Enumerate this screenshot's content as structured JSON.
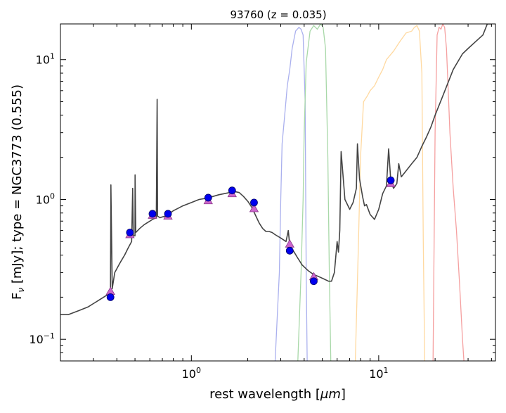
{
  "chart_data": {
    "type": "line",
    "title": "93760 (z = 0.035)",
    "xlabel_prefix": "rest wavelength [",
    "xlabel_unit": "μm",
    "xlabel_suffix": "]",
    "ylabel_prefix": "F",
    "ylabel_sub": "ν",
    "ylabel_suffix": " [mJy];  type = NGC3773 (0.555)",
    "x_scale": "log",
    "y_scale": "log",
    "xlim": [
      0.2,
      42
    ],
    "ylim": [
      0.07,
      18
    ],
    "x_ticks": [
      {
        "value": 1,
        "base": "10",
        "exp": "0"
      },
      {
        "value": 10,
        "base": "10",
        "exp": "1"
      }
    ],
    "y_ticks": [
      {
        "value": 0.1,
        "base": "10",
        "exp": "−1"
      },
      {
        "value": 1,
        "base": "10",
        "exp": "0"
      },
      {
        "value": 10,
        "base": "10",
        "exp": "1"
      }
    ],
    "grid": false,
    "colors": {
      "template": "#444444",
      "photometry": "#0000ee",
      "model": "#cc66cc",
      "filter_blue": "#aab0ee",
      "filter_green": "#a8d8a8",
      "filter_orange": "#ffd9a0",
      "filter_red": "#f5a0a0"
    },
    "series": [
      {
        "kind": "template",
        "x": [
          0.2,
          0.22,
          0.25,
          0.28,
          0.3,
          0.32,
          0.34,
          0.36,
          0.37,
          0.372,
          0.378,
          0.39,
          0.41,
          0.42,
          0.44,
          0.46,
          0.48,
          0.486,
          0.49,
          0.5,
          0.5007,
          0.505,
          0.53,
          0.56,
          0.6,
          0.62,
          0.65,
          0.6563,
          0.66,
          0.68,
          0.7,
          0.73,
          0.76,
          0.8,
          0.9,
          1.0,
          1.1,
          1.2,
          1.3,
          1.4,
          1.5,
          1.6,
          1.7,
          1.8,
          1.9,
          2.0,
          2.1,
          2.2,
          2.3,
          2.4,
          2.5,
          2.6,
          2.7,
          2.8,
          3.0,
          3.2,
          3.29,
          3.35,
          3.5,
          3.7,
          3.9,
          4.2,
          4.5,
          4.8,
          5.1,
          5.4,
          5.6,
          5.8,
          6.0,
          6.1,
          6.2,
          6.3,
          6.6,
          7.0,
          7.3,
          7.6,
          7.7,
          7.9,
          8.2,
          8.4,
          8.6,
          9.0,
          9.5,
          10.0,
          10.5,
          11.0,
          11.3,
          11.6,
          12.0,
          12.5,
          12.8,
          13.2,
          14.0,
          15.0,
          16.0,
          17.0,
          18.0,
          19.0,
          20.0,
          22.0,
          25.0,
          28.0,
          30.0,
          33.0,
          36.0,
          38.0,
          40.0
        ],
        "y": [
          0.15,
          0.15,
          0.16,
          0.17,
          0.18,
          0.19,
          0.2,
          0.21,
          0.21,
          1.27,
          0.23,
          0.3,
          0.34,
          0.36,
          0.4,
          0.45,
          0.5,
          1.2,
          0.55,
          0.55,
          1.5,
          0.58,
          0.62,
          0.66,
          0.7,
          0.72,
          0.74,
          5.2,
          0.76,
          0.74,
          0.75,
          0.76,
          0.79,
          0.83,
          0.9,
          0.95,
          1.0,
          1.02,
          1.05,
          1.08,
          1.1,
          1.12,
          1.14,
          1.12,
          1.05,
          0.97,
          0.88,
          0.77,
          0.68,
          0.62,
          0.59,
          0.59,
          0.58,
          0.56,
          0.53,
          0.5,
          0.6,
          0.47,
          0.43,
          0.38,
          0.34,
          0.31,
          0.29,
          0.28,
          0.27,
          0.26,
          0.26,
          0.3,
          0.5,
          0.42,
          0.6,
          2.2,
          1.0,
          0.85,
          0.95,
          1.2,
          2.5,
          1.4,
          1.05,
          0.9,
          0.92,
          0.78,
          0.72,
          0.85,
          1.1,
          1.25,
          2.3,
          1.35,
          1.2,
          1.3,
          1.8,
          1.45,
          1.6,
          1.8,
          2.0,
          2.4,
          2.8,
          3.3,
          4.0,
          5.5,
          8.5,
          11.0,
          12.0,
          13.5,
          15.0,
          18.0,
          18.0
        ]
      },
      {
        "kind": "filter",
        "color_key": "filter_blue",
        "x": [
          2.8,
          2.95,
          3.0,
          3.05,
          3.15,
          3.25,
          3.35,
          3.45,
          3.6,
          3.75,
          3.85,
          3.95,
          4.05,
          4.1,
          4.15
        ],
        "y": [
          0.07,
          0.3,
          1.0,
          2.5,
          4.0,
          6.5,
          8.5,
          12.0,
          16.0,
          17.0,
          16.5,
          15.0,
          5.0,
          0.3,
          0.07
        ]
      },
      {
        "kind": "filter",
        "color_key": "filter_green",
        "x": [
          3.7,
          3.85,
          3.95,
          4.0,
          4.1,
          4.3,
          4.5,
          4.7,
          4.9,
          5.05,
          5.2,
          5.35,
          5.45,
          5.55
        ],
        "y": [
          0.07,
          0.3,
          1.0,
          3.0,
          9.5,
          16.0,
          17.5,
          16.5,
          18.0,
          17.0,
          12.0,
          2.0,
          0.3,
          0.07
        ]
      },
      {
        "kind": "filter",
        "color_key": "filter_orange",
        "x": [
          7.5,
          7.8,
          8.0,
          8.3,
          8.7,
          9.0,
          9.5,
          10.0,
          10.5,
          11.0,
          12.0,
          13.0,
          14.0,
          15.0,
          15.5,
          16.0,
          16.5,
          17.0,
          17.3,
          17.6
        ],
        "y": [
          0.07,
          0.5,
          2.0,
          5.0,
          5.5,
          6.0,
          6.5,
          7.5,
          8.5,
          10.0,
          11.5,
          13.5,
          15.5,
          16.0,
          17.0,
          17.5,
          16.0,
          8.0,
          0.5,
          0.07
        ]
      },
      {
        "kind": "filter",
        "color_key": "filter_red",
        "x": [
          19.5,
          20.0,
          20.5,
          21.0,
          21.5,
          22.0,
          22.5,
          23.0,
          23.5,
          24.0,
          25.0,
          26.0,
          27.0,
          28.0,
          28.5
        ],
        "y": [
          0.07,
          3.0,
          15.0,
          17.0,
          16.5,
          18.0,
          17.0,
          12.0,
          6.0,
          3.0,
          1.2,
          0.6,
          0.25,
          0.1,
          0.07
        ]
      },
      {
        "kind": "model_points",
        "x": [
          0.37,
          0.47,
          0.62,
          0.75,
          1.23,
          1.65,
          2.16,
          3.35,
          4.5,
          11.6
        ],
        "y": [
          0.22,
          0.56,
          0.77,
          0.76,
          0.98,
          1.1,
          0.86,
          0.48,
          0.28,
          1.3
        ]
      },
      {
        "kind": "observed_points",
        "x": [
          0.37,
          0.47,
          0.62,
          0.75,
          1.23,
          1.65,
          2.16,
          3.35,
          4.5,
          11.6
        ],
        "y": [
          0.2,
          0.58,
          0.79,
          0.79,
          1.03,
          1.16,
          0.95,
          0.43,
          0.26,
          1.37
        ]
      }
    ]
  }
}
